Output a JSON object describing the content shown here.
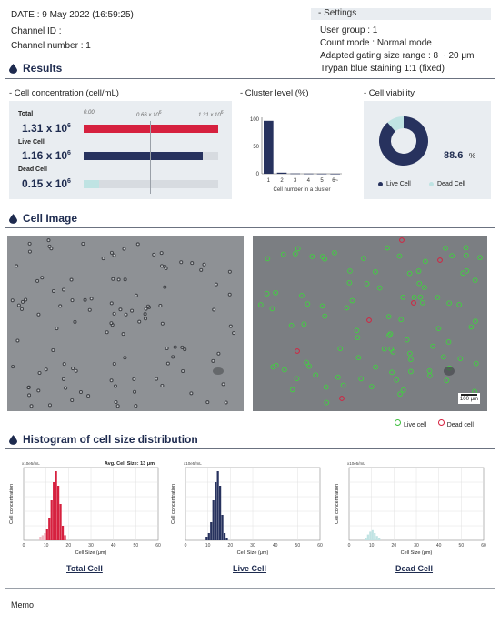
{
  "header": {
    "date_line": "DATE : 9 May 2022 (16:59:25)",
    "channel_id": "Channel ID :",
    "channel_number": "Channel number : 1"
  },
  "settings": {
    "title": "- Settings",
    "user_group": "User group : 1",
    "count_mode": "Count mode : Normal mode",
    "gating": "Adapted gating size range :   8 ~ 20   μm",
    "staining": "Trypan blue staining 1:1 (fixed)"
  },
  "sections": {
    "results": "Results",
    "cell_image": "Cell Image",
    "histogram": "Histogram of cell size distribution"
  },
  "concentration": {
    "title": "- Cell concentration (cell/mL)",
    "scale_min": "0.00",
    "scale_mid_base": "0.66 x 10",
    "scale_mid_exp": "6",
    "scale_max_base": "1.31 x 10",
    "scale_max_exp": "6",
    "rows": [
      {
        "label": "Total",
        "value_base": "1.31 x 10",
        "value_exp": "6",
        "fraction": 1.0,
        "color": "#d6213f"
      },
      {
        "label": "Live Cell",
        "value_base": "1.16 x 10",
        "value_exp": "6",
        "fraction": 0.886,
        "color": "#27325e"
      },
      {
        "label": "Dead Cell",
        "value_base": "0.15 x 10",
        "value_exp": "6",
        "fraction": 0.114,
        "color": "#bfe3e3"
      }
    ]
  },
  "cluster": {
    "title": "- Cluster level (%)",
    "xlabel": "Cell number in a cluster",
    "ticks": [
      "0",
      "50",
      "100"
    ],
    "categories": [
      "1",
      "2",
      "3",
      "4",
      "5",
      "6~"
    ],
    "values": [
      97,
      2,
      0.5,
      0.3,
      0.2,
      0.1
    ],
    "ymax": 100,
    "color": "#27325e"
  },
  "viability": {
    "title": "- Cell viability",
    "percent": "88.6",
    "unit": "%",
    "live_fraction": 0.886,
    "live_label": "Live Cell",
    "dead_label": "Dead Cell",
    "live_color": "#27325e",
    "dead_color": "#bfe3e3"
  },
  "images": {
    "scale_bar": "100 μm",
    "legend_live": "Live cell",
    "legend_dead": "Dead cell"
  },
  "histograms": [
    {
      "name": "Total Cell",
      "unit_label": "x10e5/mL",
      "avg_label": "Avg. Cell Size:  13  μm",
      "ylabel": "Cell concentration",
      "xlabel": "Cell Size (μm)",
      "xticks": [
        "0",
        "10",
        "20",
        "30",
        "40",
        "50",
        "60"
      ],
      "color": "#d6213f",
      "light_color": "#f2b7c2",
      "bins": [
        [
          7,
          0.05
        ],
        [
          8,
          0.07
        ],
        [
          9,
          0.1
        ],
        [
          10,
          0.15
        ],
        [
          11,
          0.3
        ],
        [
          12,
          0.55
        ],
        [
          13,
          0.8
        ],
        [
          14,
          0.95
        ],
        [
          15,
          0.75
        ],
        [
          16,
          0.5
        ],
        [
          17,
          0.2
        ],
        [
          18,
          0.07
        ]
      ]
    },
    {
      "name": "Live Cell",
      "unit_label": "x10e5/mL",
      "avg_label": "",
      "ylabel": "Cell concentration",
      "xlabel": "Cell Size (μm)",
      "xticks": [
        "0",
        "10",
        "20",
        "30",
        "40",
        "50",
        "60"
      ],
      "color": "#27325e",
      "light_color": "#27325e",
      "bins": [
        [
          9,
          0.05
        ],
        [
          10,
          0.1
        ],
        [
          11,
          0.25
        ],
        [
          12,
          0.55
        ],
        [
          13,
          0.8
        ],
        [
          14,
          0.95
        ],
        [
          15,
          0.75
        ],
        [
          16,
          0.35
        ],
        [
          17,
          0.1
        ],
        [
          18,
          0.03
        ]
      ]
    },
    {
      "name": "Dead Cell",
      "unit_label": "x10e5/mL",
      "avg_label": "",
      "ylabel": "Cell concentration",
      "xlabel": "Cell Size (μm)",
      "xticks": [
        "0",
        "10",
        "20",
        "30",
        "40",
        "50",
        "60"
      ],
      "color": "#bfe3e3",
      "light_color": "#bfe3e3",
      "bins": [
        [
          7,
          0.03
        ],
        [
          8,
          0.08
        ],
        [
          9,
          0.12
        ],
        [
          10,
          0.14
        ],
        [
          11,
          0.1
        ],
        [
          12,
          0.06
        ],
        [
          13,
          0.03
        ]
      ]
    }
  ],
  "memo": "Memo"
}
